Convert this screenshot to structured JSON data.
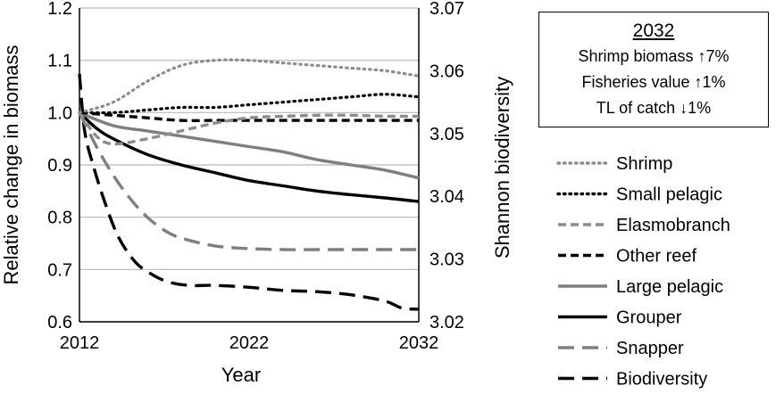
{
  "chart_data": {
    "type": "line",
    "xlabel": "Year",
    "ylabel": "Relative change in biomass",
    "y2label": "Shannon biodiversity",
    "xlim": [
      2012,
      2032
    ],
    "ylim": [
      0.6,
      1.2
    ],
    "y2lim": [
      3.02,
      3.07
    ],
    "x_ticks": [
      "2012",
      "2022",
      "2032"
    ],
    "y_ticks": [
      "0.6",
      "0.7",
      "0.8",
      "0.9",
      "1.0",
      "1.1",
      "1.2"
    ],
    "y2_ticks": [
      "3.02",
      "3.03",
      "3.04",
      "3.05",
      "3.06",
      "3.07"
    ],
    "grid": "horizontal",
    "legend_position": "right",
    "series": [
      {
        "name": "Shrimp",
        "axis": "left",
        "color": "#8c8c8c",
        "dash": "dotted",
        "x": [
          2012,
          2014,
          2016,
          2018,
          2020,
          2022,
          2024,
          2026,
          2028,
          2030,
          2032
        ],
        "y": [
          1.0,
          1.02,
          1.06,
          1.09,
          1.1,
          1.1,
          1.095,
          1.09,
          1.085,
          1.08,
          1.07
        ]
      },
      {
        "name": "Small pelagic",
        "axis": "left",
        "color": "#000000",
        "dash": "dotted",
        "x": [
          2012,
          2014,
          2016,
          2018,
          2020,
          2022,
          2024,
          2026,
          2028,
          2030,
          2032
        ],
        "y": [
          1.0,
          1.0,
          1.005,
          1.01,
          1.01,
          1.015,
          1.02,
          1.025,
          1.03,
          1.035,
          1.03
        ]
      },
      {
        "name": "Elasmobranch",
        "axis": "left",
        "color": "#8c8c8c",
        "dash": "dashed",
        "x": [
          2012,
          2013,
          2014,
          2016,
          2018,
          2020,
          2022,
          2024,
          2026,
          2028,
          2030,
          2032
        ],
        "y": [
          1.0,
          0.955,
          0.94,
          0.95,
          0.965,
          0.98,
          0.99,
          0.993,
          0.995,
          0.995,
          0.993,
          0.993
        ]
      },
      {
        "name": "Other reef",
        "axis": "left",
        "color": "#000000",
        "dash": "dashed",
        "x": [
          2012,
          2014,
          2016,
          2018,
          2020,
          2022,
          2024,
          2026,
          2028,
          2030,
          2032
        ],
        "y": [
          1.0,
          0.995,
          0.99,
          0.985,
          0.985,
          0.985,
          0.985,
          0.985,
          0.985,
          0.985,
          0.985
        ]
      },
      {
        "name": "Large pelagic",
        "axis": "left",
        "color": "#7f7f7f",
        "dash": "solid",
        "x": [
          2012,
          2014,
          2016,
          2018,
          2020,
          2022,
          2024,
          2026,
          2028,
          2030,
          2032
        ],
        "y": [
          1.0,
          0.975,
          0.965,
          0.955,
          0.945,
          0.935,
          0.925,
          0.91,
          0.9,
          0.89,
          0.875
        ]
      },
      {
        "name": "Grouper",
        "axis": "left",
        "color": "#000000",
        "dash": "solid",
        "x": [
          2012,
          2013,
          2014,
          2016,
          2018,
          2020,
          2022,
          2024,
          2026,
          2028,
          2030,
          2032
        ],
        "y": [
          1.0,
          0.97,
          0.95,
          0.92,
          0.9,
          0.885,
          0.87,
          0.86,
          0.85,
          0.843,
          0.837,
          0.83
        ]
      },
      {
        "name": "Snapper",
        "axis": "left",
        "color": "#7f7f7f",
        "dash": "longdash",
        "x": [
          2012,
          2013,
          2014,
          2015,
          2016,
          2017,
          2018,
          2020,
          2022,
          2024,
          2026,
          2028,
          2030,
          2032
        ],
        "y": [
          1.0,
          0.935,
          0.88,
          0.835,
          0.8,
          0.775,
          0.76,
          0.745,
          0.74,
          0.738,
          0.738,
          0.738,
          0.738,
          0.738
        ]
      },
      {
        "name": "Biodiversity",
        "axis": "right",
        "color": "#000000",
        "dash": "longdash",
        "x": [
          2012,
          2012.3,
          2012.8,
          2013.5,
          2014.3,
          2015.3,
          2016.3,
          2017.3,
          2018.5,
          2020,
          2022,
          2024,
          2026,
          2028,
          2030,
          2031,
          2032
        ],
        "y": [
          3.0595,
          3.0505,
          3.045,
          3.039,
          3.0335,
          3.0295,
          3.0275,
          3.0263,
          3.0258,
          3.0258,
          3.0255,
          3.025,
          3.0248,
          3.0243,
          3.0233,
          3.0222,
          3.022
        ]
      }
    ]
  },
  "info_box": {
    "title": "2032",
    "lines": [
      "Shrimp biomass ↑7%",
      "Fisheries value ↑1%",
      "TL of catch ↓1%"
    ]
  }
}
